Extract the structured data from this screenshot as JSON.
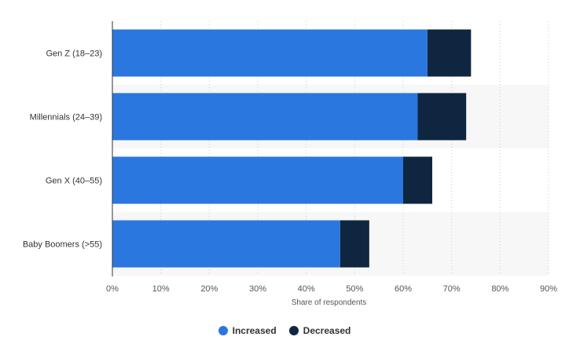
{
  "chart_data": {
    "type": "bar",
    "orientation": "horizontal",
    "stacked": true,
    "categories": [
      "Gen Z (18-23)",
      "Millennials (24-39)",
      "Gen X (40-55)",
      "Baby Boomers (>55)"
    ],
    "series": [
      {
        "name": "Increased",
        "values": [
          65,
          63,
          60,
          47
        ],
        "color": "#2b77e0"
      },
      {
        "name": "Decreased",
        "values": [
          9,
          10,
          6,
          6
        ],
        "color": "#0f2640"
      }
    ],
    "xlabel": "Share of respondents",
    "xlim": [
      0,
      90
    ],
    "xticks": [
      0,
      10,
      20,
      30,
      40,
      50,
      60,
      70,
      80,
      90
    ],
    "tick_suffix": "%",
    "grid": true,
    "legend_position": "bottom-center"
  },
  "legend": {
    "items": [
      {
        "label": "Increased",
        "color": "#2b77e0"
      },
      {
        "label": "Decreased",
        "color": "#0f2640"
      }
    ]
  }
}
